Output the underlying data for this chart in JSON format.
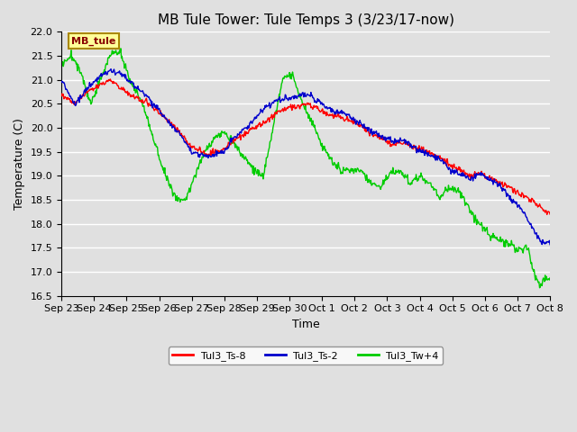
{
  "title": "MB Tule Tower: Tule Temps 3 (3/23/17-now)",
  "xlabel": "Time",
  "ylabel": "Temperature (C)",
  "ylim": [
    16.5,
    22.0
  ],
  "yticks": [
    16.5,
    17.0,
    17.5,
    18.0,
    18.5,
    19.0,
    19.5,
    20.0,
    20.5,
    21.0,
    21.5,
    22.0
  ],
  "background_color": "#e0e0e0",
  "plot_bg_color": "#e0e0e0",
  "grid_color": "#ffffff",
  "line_colors": {
    "Tul3_Ts-8": "#ff0000",
    "Tul3_Ts-2": "#0000cc",
    "Tul3_Tw+4": "#00cc00"
  },
  "line_width": 1.0,
  "xtick_labels": [
    "Sep 23",
    "Sep 24",
    "Sep 25",
    "Sep 26",
    "Sep 27",
    "Sep 28",
    "Sep 29",
    "Sep 30",
    "Oct 1",
    "Oct 2",
    "Oct 3",
    "Oct 4",
    "Oct 5",
    "Oct 6",
    "Oct 7",
    "Oct 8"
  ],
  "legend_label": "MB_tule",
  "legend_bg": "#ffff99",
  "legend_border": "#aa8800",
  "title_fontsize": 11,
  "axis_fontsize": 9,
  "tick_fontsize": 8
}
